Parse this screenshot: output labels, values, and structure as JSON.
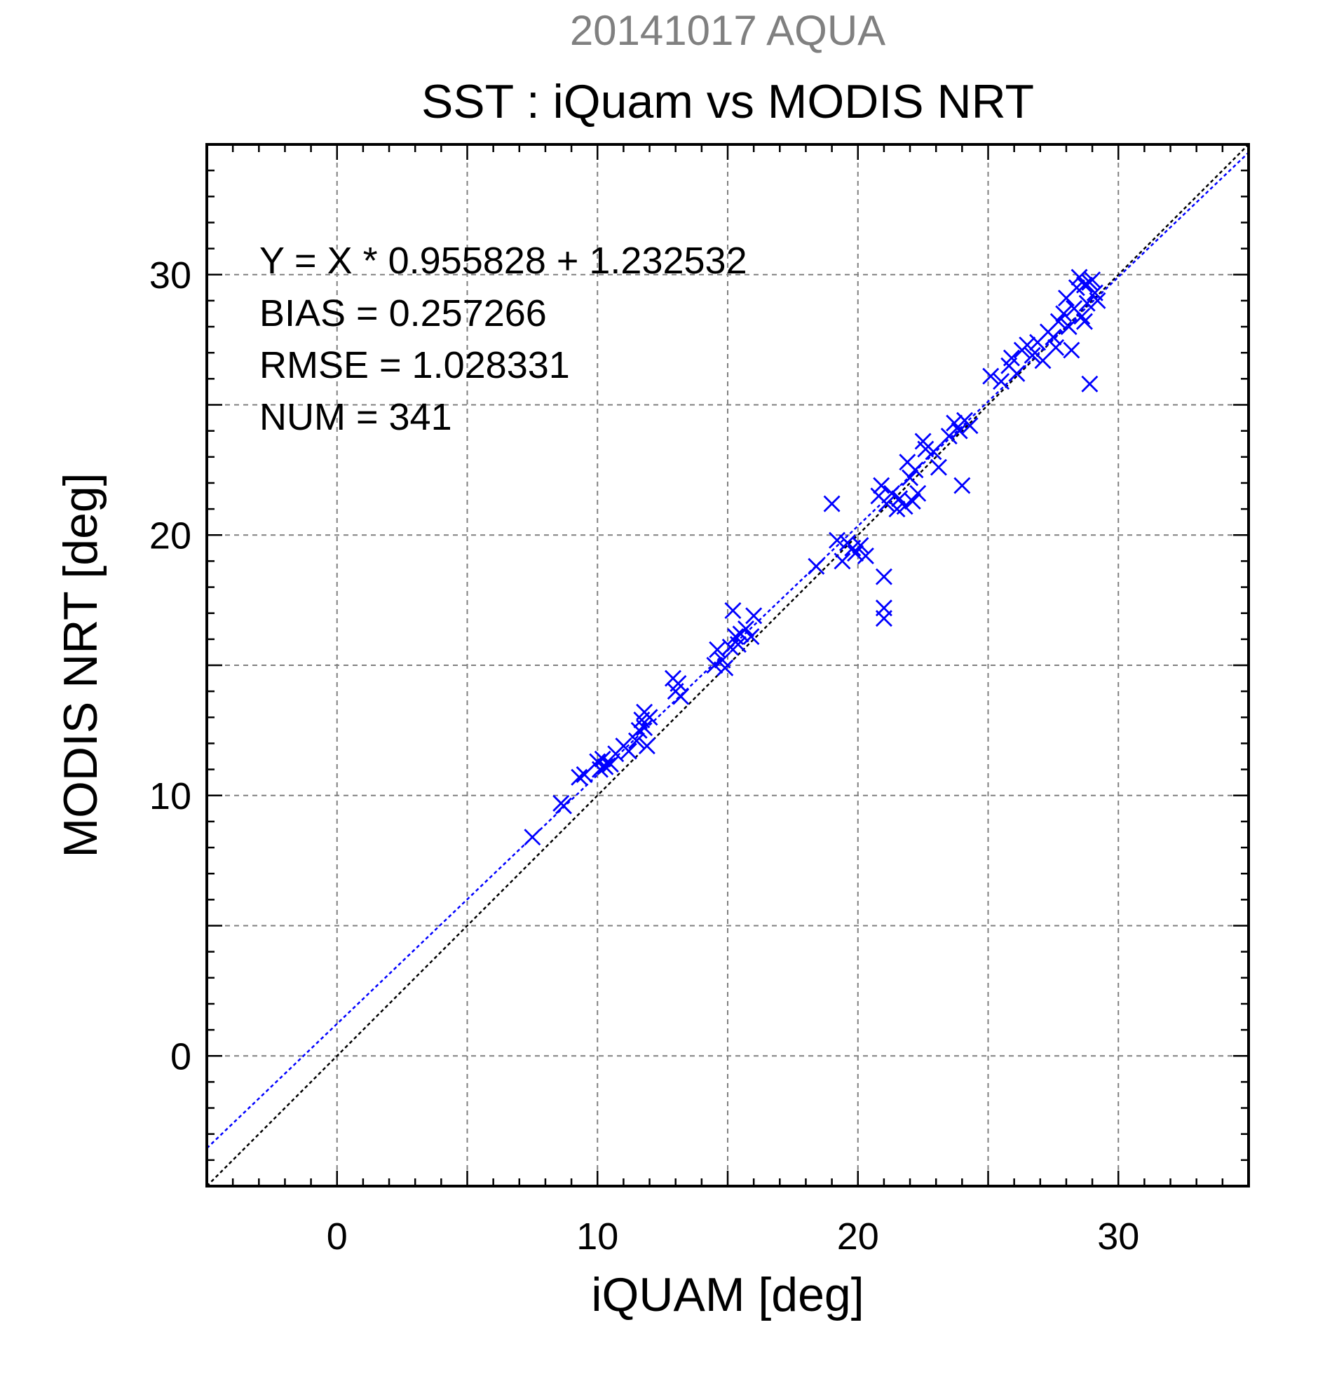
{
  "chart_data": {
    "type": "scatter",
    "title": "SST : iQuam vs MODIS NRT",
    "subtitle": "20141017 AQUA",
    "xlabel": "iQUAM [deg]",
    "ylabel": "MODIS NRT [deg]",
    "xlim": [
      -5,
      35
    ],
    "ylim": [
      -5,
      35
    ],
    "xticks": [
      "0",
      "10",
      "20",
      "30"
    ],
    "yticks": [
      "0",
      "10",
      "20",
      "30"
    ],
    "grid": true,
    "colors": {
      "points": "#0000ff",
      "fit_line": "#0000ff",
      "identity_line": "#000000",
      "subtitle": "#808080",
      "grid": "#808080"
    },
    "stats": [
      "Y = X * 0.955828 + 1.232532",
      "BIAS = 0.257266",
      "RMSE = 1.028331",
      "NUM = 341"
    ],
    "fit": {
      "slope": 0.955828,
      "intercept": 1.232532
    },
    "identity": {
      "slope": 1,
      "intercept": 0
    },
    "marker": "x",
    "series": [
      {
        "points": [
          [
            7.5,
            8.4
          ],
          [
            8.6,
            9.7
          ],
          [
            8.7,
            9.6
          ],
          [
            9.3,
            10.7
          ],
          [
            9.5,
            10.8
          ],
          [
            10.0,
            11.3
          ],
          [
            10.1,
            11.0
          ],
          [
            10.2,
            11.4
          ],
          [
            10.3,
            11.1
          ],
          [
            10.5,
            11.2
          ],
          [
            10.7,
            11.6
          ],
          [
            11.0,
            11.9
          ],
          [
            11.2,
            11.7
          ],
          [
            11.5,
            12.1
          ],
          [
            11.6,
            12.5
          ],
          [
            11.7,
            12.9
          ],
          [
            11.8,
            12.6
          ],
          [
            11.8,
            13.2
          ],
          [
            12.0,
            13.0
          ],
          [
            11.9,
            11.9
          ],
          [
            12.9,
            14.5
          ],
          [
            13.0,
            14.0
          ],
          [
            13.1,
            14.3
          ],
          [
            13.2,
            13.8
          ],
          [
            14.5,
            15.0
          ],
          [
            14.6,
            15.6
          ],
          [
            14.8,
            15.2
          ],
          [
            14.9,
            14.9
          ],
          [
            15.1,
            15.7
          ],
          [
            15.2,
            17.1
          ],
          [
            15.3,
            16.1
          ],
          [
            15.5,
            16.2
          ],
          [
            15.4,
            15.8
          ],
          [
            15.7,
            16.4
          ],
          [
            16.0,
            16.9
          ],
          [
            15.9,
            16.1
          ],
          [
            18.4,
            18.8
          ],
          [
            19.0,
            21.2
          ],
          [
            19.2,
            19.8
          ],
          [
            19.4,
            19.0
          ],
          [
            19.6,
            19.7
          ],
          [
            19.8,
            19.5
          ],
          [
            19.9,
            19.3
          ],
          [
            20.1,
            19.6
          ],
          [
            20.3,
            19.2
          ],
          [
            20.8,
            21.5
          ],
          [
            20.9,
            21.9
          ],
          [
            21.0,
            18.4
          ],
          [
            21.0,
            17.2
          ],
          [
            21.0,
            16.8
          ],
          [
            21.1,
            21.2
          ],
          [
            21.3,
            21.6
          ],
          [
            21.5,
            21.0
          ],
          [
            21.6,
            21.4
          ],
          [
            21.8,
            21.1
          ],
          [
            21.9,
            22.8
          ],
          [
            22.0,
            22.2
          ],
          [
            22.1,
            21.3
          ],
          [
            22.2,
            22.5
          ],
          [
            22.3,
            21.6
          ],
          [
            22.5,
            23.6
          ],
          [
            22.6,
            23.3
          ],
          [
            22.9,
            23.2
          ],
          [
            23.1,
            22.6
          ],
          [
            23.5,
            23.8
          ],
          [
            23.7,
            24.3
          ],
          [
            23.9,
            24.0
          ],
          [
            24.1,
            24.4
          ],
          [
            24.0,
            21.9
          ],
          [
            24.3,
            24.2
          ],
          [
            25.1,
            26.1
          ],
          [
            25.5,
            25.9
          ],
          [
            25.8,
            26.5
          ],
          [
            25.9,
            26.8
          ],
          [
            26.1,
            26.2
          ],
          [
            26.3,
            27.1
          ],
          [
            26.5,
            27.3
          ],
          [
            26.7,
            26.9
          ],
          [
            26.9,
            27.4
          ],
          [
            27.1,
            26.7
          ],
          [
            27.3,
            27.8
          ],
          [
            27.5,
            27.6
          ],
          [
            27.7,
            28.2
          ],
          [
            27.9,
            28.5
          ],
          [
            28.0,
            29.1
          ],
          [
            28.1,
            28.0
          ],
          [
            28.2,
            27.1
          ],
          [
            28.3,
            28.7
          ],
          [
            28.4,
            29.5
          ],
          [
            28.5,
            29.9
          ],
          [
            28.6,
            28.4
          ],
          [
            28.7,
            29.6
          ],
          [
            28.8,
            28.9
          ],
          [
            28.9,
            25.8
          ],
          [
            29.0,
            29.8
          ],
          [
            29.1,
            29.3
          ],
          [
            29.2,
            29.0
          ],
          [
            28.7,
            28.2
          ],
          [
            27.6,
            27.2
          ],
          [
            28.9,
            29.7
          ]
        ]
      }
    ]
  }
}
